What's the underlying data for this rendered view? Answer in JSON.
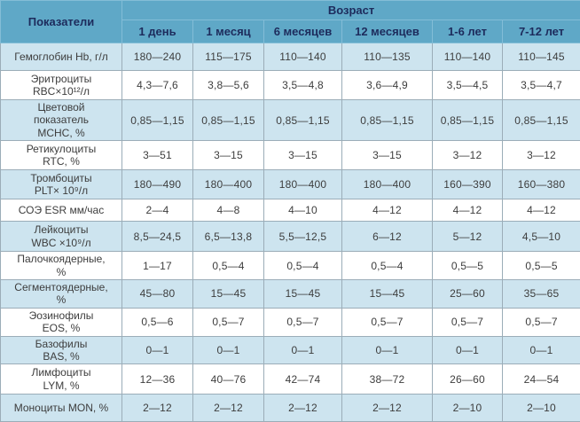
{
  "colors": {
    "header_bg": "#5fa8c7",
    "header_text": "#1d2b5c",
    "row_alt_bg": "#cde4ef",
    "row_plain_bg": "#ffffff",
    "grid_line": "#9badb8",
    "body_text": "#3d3d3d"
  },
  "chart_data": {
    "type": "table",
    "indicator_header": "Показатели",
    "age_group_header": "Возраст",
    "columns": [
      "1 день",
      "1 месяц",
      "6 месяцев",
      "12 месяцев",
      "1-6 лет",
      "7-12 лет"
    ],
    "rows": [
      {
        "label": "Гемоглобин Hb, г/л",
        "values": [
          "180—240",
          "115—175",
          "110—140",
          "110—135",
          "110—140",
          "110—145"
        ]
      },
      {
        "label": "Эритроциты\nRBC×10¹²/л",
        "values": [
          "4,3—7,6",
          "3,8—5,6",
          "3,5—4,8",
          "3,6—4,9",
          "3,5—4,5",
          "3,5—4,7"
        ]
      },
      {
        "label": "Цветовой\nпоказатель\nMCHC, %",
        "values": [
          "0,85—1,15",
          "0,85—1,15",
          "0,85—1,15",
          "0,85—1,15",
          "0,85—1,15",
          "0,85—1,15"
        ]
      },
      {
        "label": "Ретикулоциты\nRTC, %",
        "values": [
          "3—51",
          "3—15",
          "3—15",
          "3—15",
          "3—12",
          "3—12"
        ]
      },
      {
        "label": "Тромбоциты\nPLT× 10⁹/л",
        "values": [
          "180—490",
          "180—400",
          "180—400",
          "180—400",
          "160—390",
          "160—380"
        ]
      },
      {
        "label": "СОЭ ESR мм/час",
        "values": [
          "2—4",
          "4—8",
          "4—10",
          "4—12",
          "4—12",
          "4—12"
        ]
      },
      {
        "label": "Лейкоциты\nWBC ×10⁹/л",
        "values": [
          "8,5—24,5",
          "6,5—13,8",
          "5,5—12,5",
          "6—12",
          "5—12",
          "4,5—10"
        ]
      },
      {
        "label": "Палочкоядерные,\n%",
        "values": [
          "1—17",
          "0,5—4",
          "0,5—4",
          "0,5—4",
          "0,5—5",
          "0,5—5"
        ]
      },
      {
        "label": "Сегментоядерные,\n%",
        "values": [
          "45—80",
          "15—45",
          "15—45",
          "15—45",
          "25—60",
          "35—65"
        ]
      },
      {
        "label": "Эозинофилы\nEOS, %",
        "values": [
          "0,5—6",
          "0,5—7",
          "0,5—7",
          "0,5—7",
          "0,5—7",
          "0,5—7"
        ]
      },
      {
        "label": "Базофилы\nBAS, %",
        "values": [
          "0—1",
          "0—1",
          "0—1",
          "0—1",
          "0—1",
          "0—1"
        ]
      },
      {
        "label": "Лимфоциты\nLYM, %",
        "values": [
          "12—36",
          "40—76",
          "42—74",
          "38—72",
          "26—60",
          "24—54"
        ]
      },
      {
        "label": "Моноциты MON, %",
        "values": [
          "2—12",
          "2—12",
          "2—12",
          "2—12",
          "2—10",
          "2—10"
        ]
      }
    ]
  }
}
